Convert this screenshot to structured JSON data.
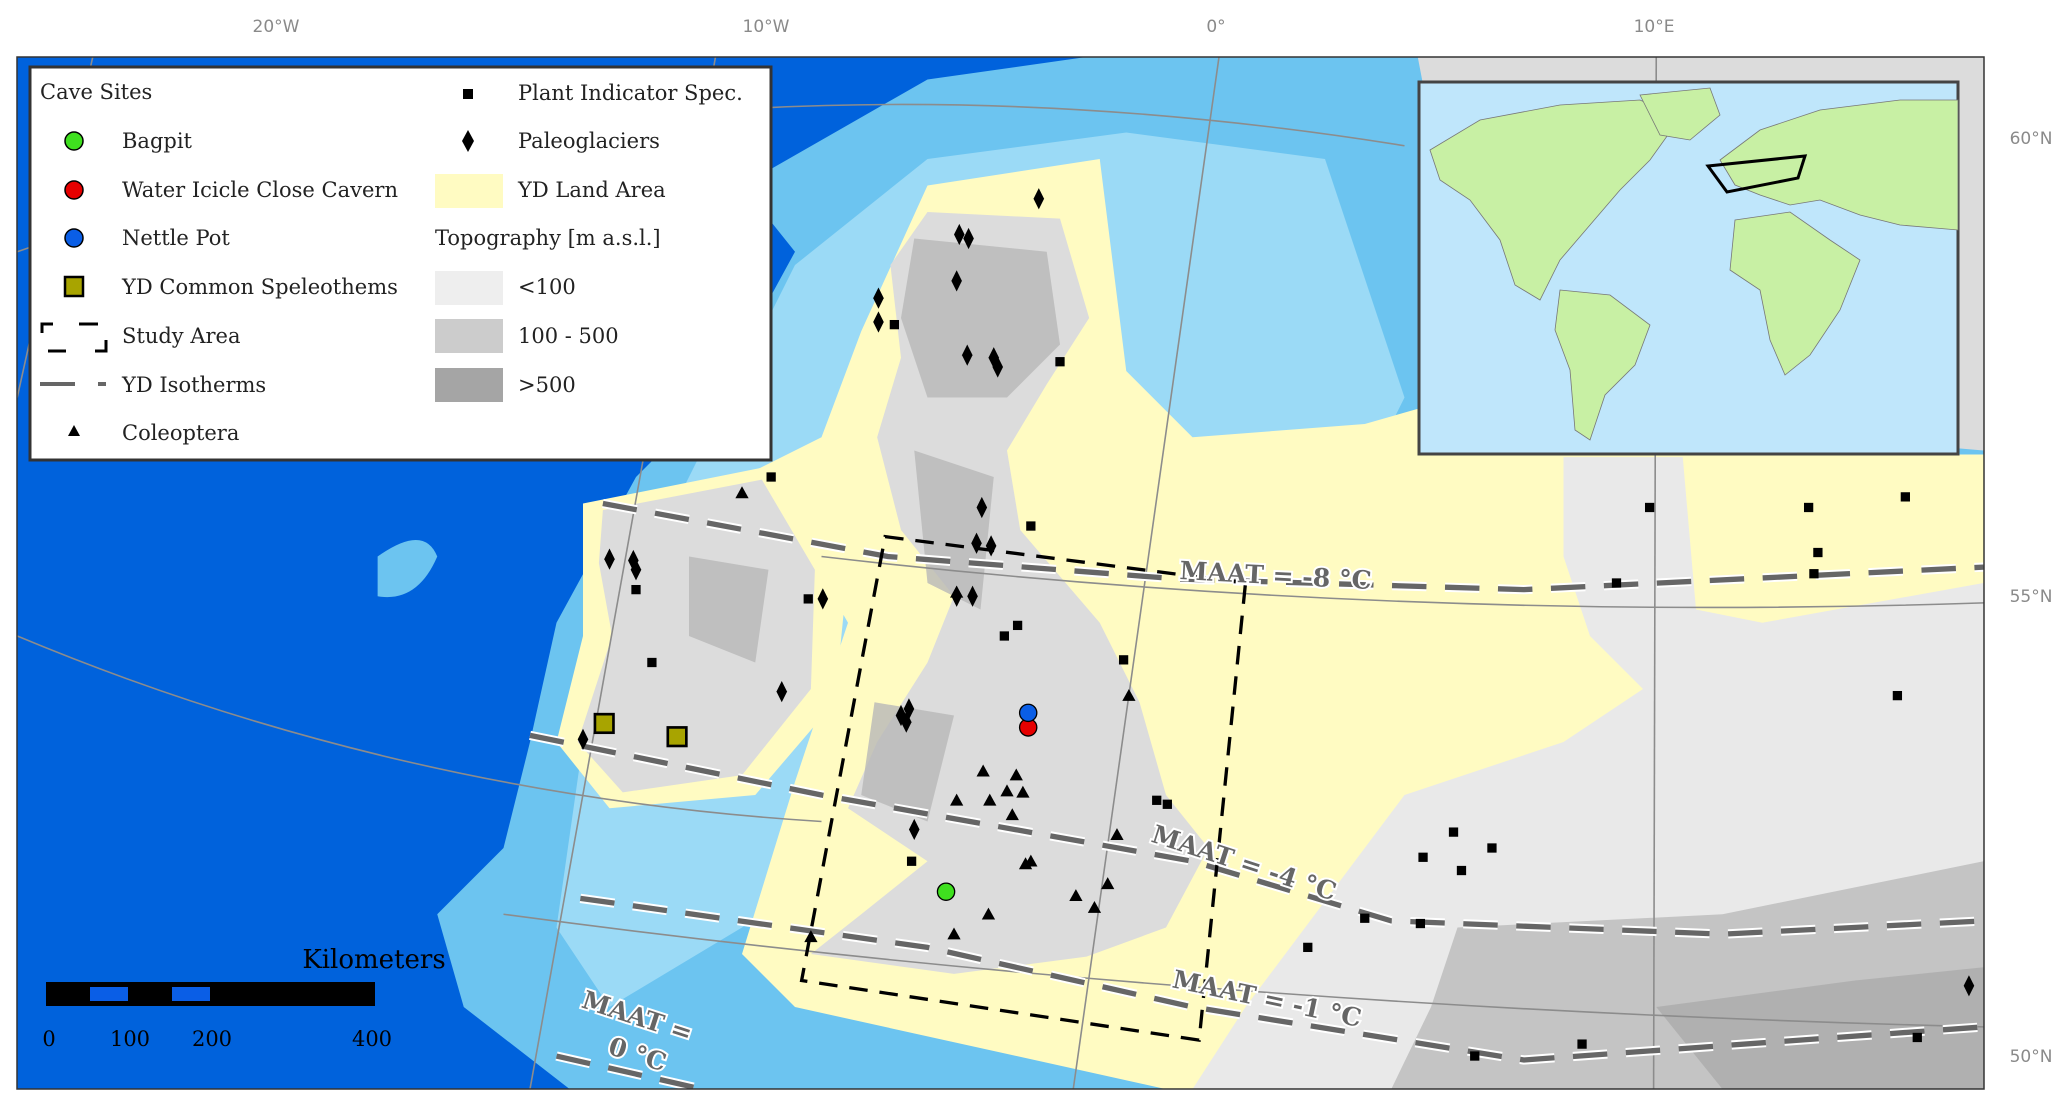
{
  "axes": {
    "longitude_ticks": [
      "20°W",
      "10°W",
      "0°",
      "10°E"
    ],
    "latitude_ticks": [
      "60°N",
      "55°N",
      "50°N"
    ]
  },
  "legend": {
    "cave_sites_title": "Cave Sites",
    "bagpit": "Bagpit",
    "water_icicle": "Water Icicle Close Cavern",
    "nettle_pot": "Nettle Pot",
    "speleothems": "YD Common Speleothems",
    "study_area": "Study Area",
    "isotherms": "YD Isotherms",
    "coleoptera": "Coleoptera",
    "plant": "Plant Indicator Spec.",
    "paleoglaciers": "Paleoglaciers",
    "land_area": "YD Land Area",
    "topography_title": "Topography [m a.s.l.]",
    "topo_low": "<100",
    "topo_mid": "100 - 500",
    "topo_high": ">500"
  },
  "isotherm_labels": {
    "minus8": "MAAT = -8 °C",
    "minus4": "MAAT = -4 °C",
    "minus1": "MAAT = -1 °C",
    "zero_line1": "MAAT =",
    "zero_line2": "0 °C"
  },
  "scale_bar": {
    "unit": "Kilometers",
    "labels": [
      "0",
      "100",
      "200",
      "400"
    ]
  },
  "colors": {
    "deep_ocean": "#0062dc",
    "shelf": "#6cc4f0",
    "land_area": "#fffbc2",
    "topo_low": "#eeeeee",
    "topo_mid": "#cccccc",
    "topo_high": "#a5a5a5",
    "bagpit": "#3fe01f",
    "water_icicle": "#e60000",
    "nettle_pot": "#0a5ee6",
    "speleothem": "#a8a400"
  }
}
